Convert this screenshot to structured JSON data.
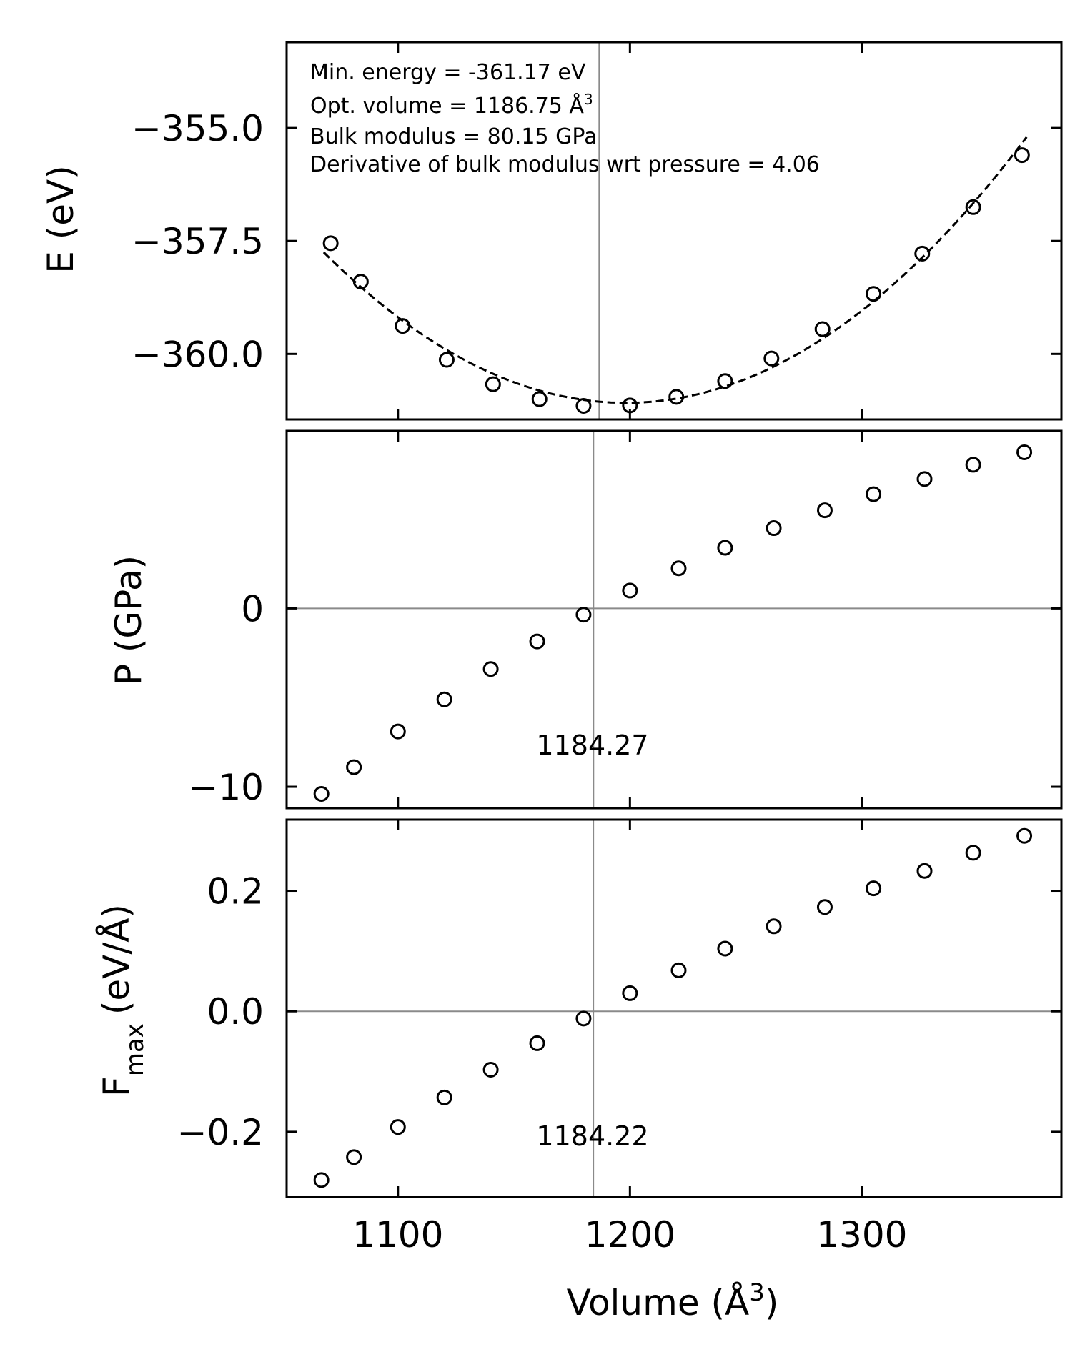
{
  "chart_data": [
    {
      "type": "scatter",
      "id": "energy",
      "ylabel": "E (eV)",
      "xlim": [
        1052,
        1386
      ],
      "ylim": [
        -361.45,
        -353.1
      ],
      "yticks": [
        -355.0,
        -357.5,
        -360.0
      ],
      "ytick_labels": [
        "−355.0",
        "−357.5",
        "−360.0"
      ],
      "xticks": [
        1100,
        1200,
        1300
      ],
      "x": [
        1071,
        1084,
        1102,
        1121,
        1141,
        1161,
        1180,
        1200,
        1220,
        1241,
        1261,
        1283,
        1305,
        1326,
        1348,
        1369
      ],
      "y": [
        -357.55,
        -358.4,
        -359.38,
        -360.13,
        -360.67,
        -361.0,
        -361.15,
        -361.14,
        -360.95,
        -360.6,
        -360.1,
        -359.45,
        -358.67,
        -357.78,
        -356.75,
        -355.6
      ],
      "fit_line": true,
      "vline": 1186.75,
      "annotations": [
        "Min. energy = -361.17 eV",
        "Opt. volume = 1186.75 Å",
        "Bulk modulus = 80.15 GPa",
        "Derivative of bulk modulus wrt pressure = 4.06"
      ],
      "annotation_superscript": "3"
    },
    {
      "type": "scatter",
      "id": "pressure",
      "ylabel": "P (GPa)",
      "xlim": [
        1052,
        1386
      ],
      "ylim": [
        -11.2,
        9.95
      ],
      "yticks": [
        0,
        -10
      ],
      "ytick_labels": [
        "0",
        "−10"
      ],
      "xticks": [
        1100,
        1200,
        1300
      ],
      "x": [
        1067,
        1081,
        1100,
        1120,
        1140,
        1160,
        1180,
        1200,
        1221,
        1241,
        1262,
        1284,
        1305,
        1327,
        1348,
        1370
      ],
      "y": [
        -10.4,
        -8.9,
        -6.9,
        -5.1,
        -3.4,
        -1.85,
        -0.35,
        1.0,
        2.25,
        3.4,
        4.5,
        5.5,
        6.4,
        7.25,
        8.05,
        8.75
      ],
      "hline": 0,
      "vline": 1184.27,
      "vline_label": "1184.27"
    },
    {
      "type": "scatter",
      "id": "force",
      "ylabel": "F",
      "ylabel_sub": "max",
      "ylabel_unit": "(eV/Å)",
      "xlabel": "Volume (Å",
      "xlabel_sup": "3",
      "xlabel_close": ")",
      "xlim": [
        1052,
        1386
      ],
      "ylim": [
        -0.308,
        0.318
      ],
      "yticks": [
        0.2,
        0.0,
        -0.2
      ],
      "ytick_labels": [
        "0.2",
        "0.0",
        "−0.2"
      ],
      "xticks": [
        1100,
        1200,
        1300
      ],
      "xtick_labels": [
        "1100",
        "1200",
        "1300"
      ],
      "x": [
        1067,
        1081,
        1100,
        1120,
        1140,
        1160,
        1180,
        1200,
        1221,
        1241,
        1262,
        1284,
        1305,
        1327,
        1348,
        1370
      ],
      "y": [
        -0.28,
        -0.242,
        -0.192,
        -0.143,
        -0.097,
        -0.053,
        -0.012,
        0.03,
        0.068,
        0.104,
        0.141,
        0.173,
        0.204,
        0.233,
        0.263,
        0.291
      ],
      "hline": 0,
      "vline": 1184.22,
      "vline_label": "1184.22"
    }
  ]
}
